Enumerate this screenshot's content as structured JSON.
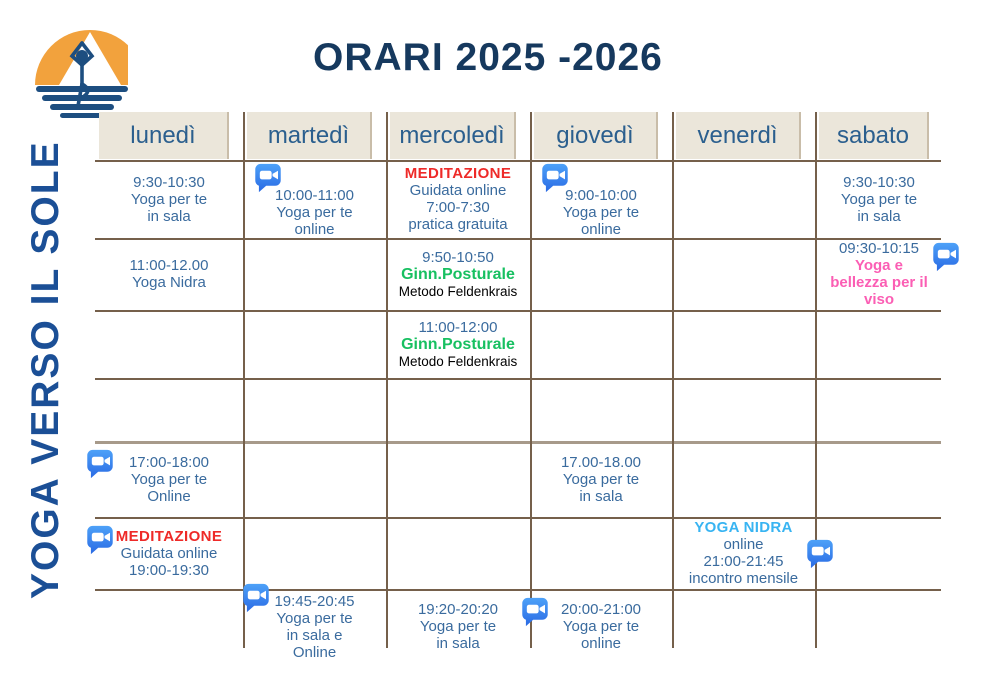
{
  "title": "ORARI 2025 -2026",
  "brand_vertical_text": "YOGA VERSO IL SOLE",
  "logo": {
    "name": "yoga-verso-il-sole-logo",
    "elements": [
      "sun",
      "yoga-figure-tree-pose",
      "water-waves"
    ]
  },
  "days": [
    "lunedì",
    "martedì",
    "mercoledì",
    "giovedì",
    "venerdì",
    "sabato"
  ],
  "icons": {
    "video_icon": "zoom-video"
  },
  "colors": {
    "title": "#16395e",
    "brand_text": "#1b4f96",
    "event_text": "#3a6b9e",
    "red_accent": "#ee2a28",
    "green_accent": "#17c061",
    "pink_accent": "#fb5eb4",
    "cyan_accent": "#38b4f2",
    "grid_line": "#75604b",
    "header_bg": "#ebe6da",
    "logo_sun": "#f2a23d",
    "logo_figure": "#1d4e80",
    "video_icon_blue": "#2d8cff"
  },
  "schedule": [
    {
      "day": "lunedi",
      "row": 1,
      "col": 1,
      "icon": null,
      "lines": [
        {
          "t": "9:30-10:30",
          "s": "time"
        },
        {
          "t": "Yoga per te",
          "s": "body"
        },
        {
          "t": "in sala",
          "s": "body"
        }
      ]
    },
    {
      "day": "martedi",
      "row": 1,
      "col": 2,
      "icon": "top-left",
      "lines": [
        {
          "t": "10:00-11:00",
          "s": "time"
        },
        {
          "t": "Yoga per te",
          "s": "body"
        },
        {
          "t": "online",
          "s": "body"
        }
      ]
    },
    {
      "day": "mercoledi",
      "row": 1,
      "col": 3,
      "icon": null,
      "lines": [
        {
          "t": "MEDITAZIONE",
          "s": "red"
        },
        {
          "t": "Guidata online",
          "s": "body"
        },
        {
          "t": "7:00-7:30",
          "s": "body"
        },
        {
          "t": "pratica gratuita",
          "s": "body"
        }
      ]
    },
    {
      "day": "giovedi",
      "row": 1,
      "col": 4,
      "icon": "top-left",
      "lines": [
        {
          "t": "9:00-10:00",
          "s": "time"
        },
        {
          "t": "Yoga per te",
          "s": "body"
        },
        {
          "t": "online",
          "s": "body"
        }
      ]
    },
    {
      "day": "sabato",
      "row": 1,
      "col": 6,
      "icon": null,
      "lines": [
        {
          "t": "9:30-10:30",
          "s": "time"
        },
        {
          "t": "Yoga per te",
          "s": "body"
        },
        {
          "t": "in sala",
          "s": "body"
        }
      ]
    },
    {
      "day": "lunedi",
      "row": 2,
      "col": 1,
      "icon": null,
      "lines": [
        {
          "t": "11:00-12.00",
          "s": "time"
        },
        {
          "t": "Yoga Nidra",
          "s": "body"
        }
      ]
    },
    {
      "day": "mercoledi",
      "row": 2,
      "col": 3,
      "icon": null,
      "lines": [
        {
          "t": "9:50-10:50",
          "s": "time"
        },
        {
          "t": "Ginn.Posturale",
          "s": "green"
        },
        {
          "t": "Metodo Feldenkrais",
          "s": "small"
        }
      ]
    },
    {
      "day": "sabato",
      "row": 2,
      "col": 6,
      "icon": "right",
      "lines": [
        {
          "t": "09:30-10:15",
          "s": "time"
        },
        {
          "t": "Yoga e",
          "s": "pink"
        },
        {
          "t": "bellezza per il",
          "s": "pink"
        },
        {
          "t": "viso",
          "s": "pink"
        }
      ]
    },
    {
      "day": "mercoledi",
      "row": 3,
      "col": 3,
      "icon": null,
      "lines": [
        {
          "t": "11:00-12:00",
          "s": "time"
        },
        {
          "t": "Ginn.Posturale",
          "s": "green"
        },
        {
          "t": "Metodo Feldenkrais",
          "s": "small"
        }
      ]
    },
    {
      "day": "lunedi",
      "row": 5,
      "col": 1,
      "icon": "left",
      "lines": [
        {
          "t": "17:00-18:00",
          "s": "time"
        },
        {
          "t": "Yoga per te",
          "s": "body"
        },
        {
          "t": "Online",
          "s": "body"
        }
      ]
    },
    {
      "day": "giovedi",
      "row": 5,
      "col": 4,
      "icon": null,
      "lines": [
        {
          "t": "17.00-18.00",
          "s": "time"
        },
        {
          "t": "Yoga per te",
          "s": "body"
        },
        {
          "t": "in sala",
          "s": "body"
        }
      ]
    },
    {
      "day": "lunedi",
      "row": 6,
      "col": 1,
      "icon": "left",
      "lines": [
        {
          "t": "MEDITAZIONE",
          "s": "red"
        },
        {
          "t": "Guidata online",
          "s": "body"
        },
        {
          "t": "19:00-19:30",
          "s": "body"
        }
      ]
    },
    {
      "day": "venerdi",
      "row": 6,
      "col": 5,
      "icon": "right-mid",
      "lines": [
        {
          "t": "YOGA NIDRA",
          "s": "cyan"
        },
        {
          "t": "online",
          "s": "body"
        },
        {
          "t": "21:00-21:45",
          "s": "body"
        },
        {
          "t": "incontro mensile",
          "s": "body"
        }
      ]
    },
    {
      "day": "martedi",
      "row": 7,
      "col": 2,
      "icon": "top-left-out",
      "lines": [
        {
          "t": "19:45-20:45",
          "s": "time"
        },
        {
          "t": "Yoga per te",
          "s": "body"
        },
        {
          "t": "in sala e",
          "s": "body"
        },
        {
          "t": "Online",
          "s": "body"
        }
      ]
    },
    {
      "day": "mercoledi",
      "row": 7,
      "col": 3,
      "icon": null,
      "lines": [
        {
          "t": "19:20-20:20",
          "s": "time"
        },
        {
          "t": "Yoga per te",
          "s": "body"
        },
        {
          "t": "in sala",
          "s": "body"
        }
      ]
    },
    {
      "day": "giovedi",
      "row": 7,
      "col": 4,
      "icon": "left",
      "lines": [
        {
          "t": "20:00-21:00",
          "s": "time"
        },
        {
          "t": "Yoga per te",
          "s": "body"
        },
        {
          "t": "online",
          "s": "body"
        }
      ]
    }
  ]
}
